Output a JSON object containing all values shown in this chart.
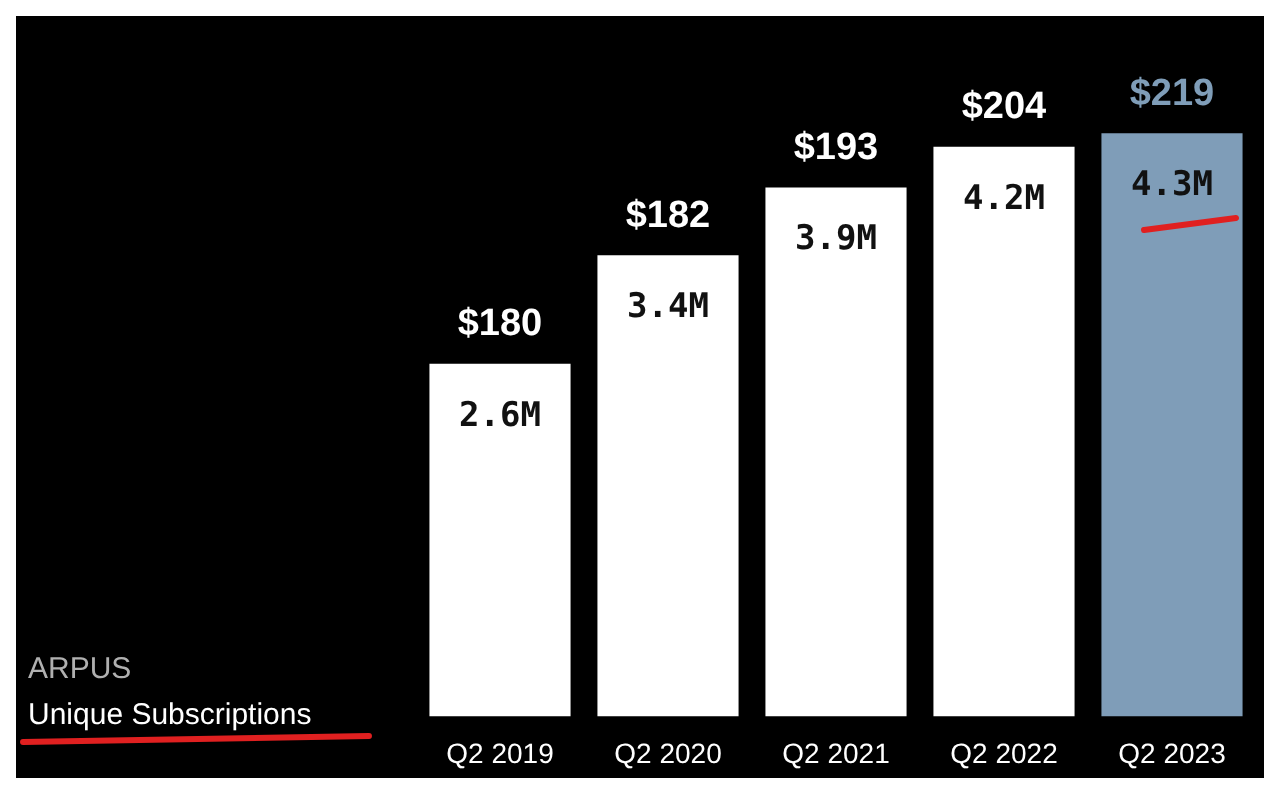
{
  "chart_data": {
    "type": "bar",
    "categories": [
      "Q2 2019",
      "Q2 2020",
      "Q2 2021",
      "Q2 2022",
      "Q2 2023"
    ],
    "values": [
      2.6,
      3.4,
      3.9,
      4.2,
      4.3
    ],
    "value_labels": [
      "2.6M",
      "3.4M",
      "3.9M",
      "4.2M",
      "4.3M"
    ],
    "colors": [
      "#ffffff",
      "#ffffff",
      "#ffffff",
      "#ffffff",
      "#7f9db8"
    ],
    "annotations": [
      "$180",
      "$182",
      "$193",
      "$204",
      "$219",
      "ARPUS",
      "Unique Subscriptions"
    ],
    "legend": false
  }
}
